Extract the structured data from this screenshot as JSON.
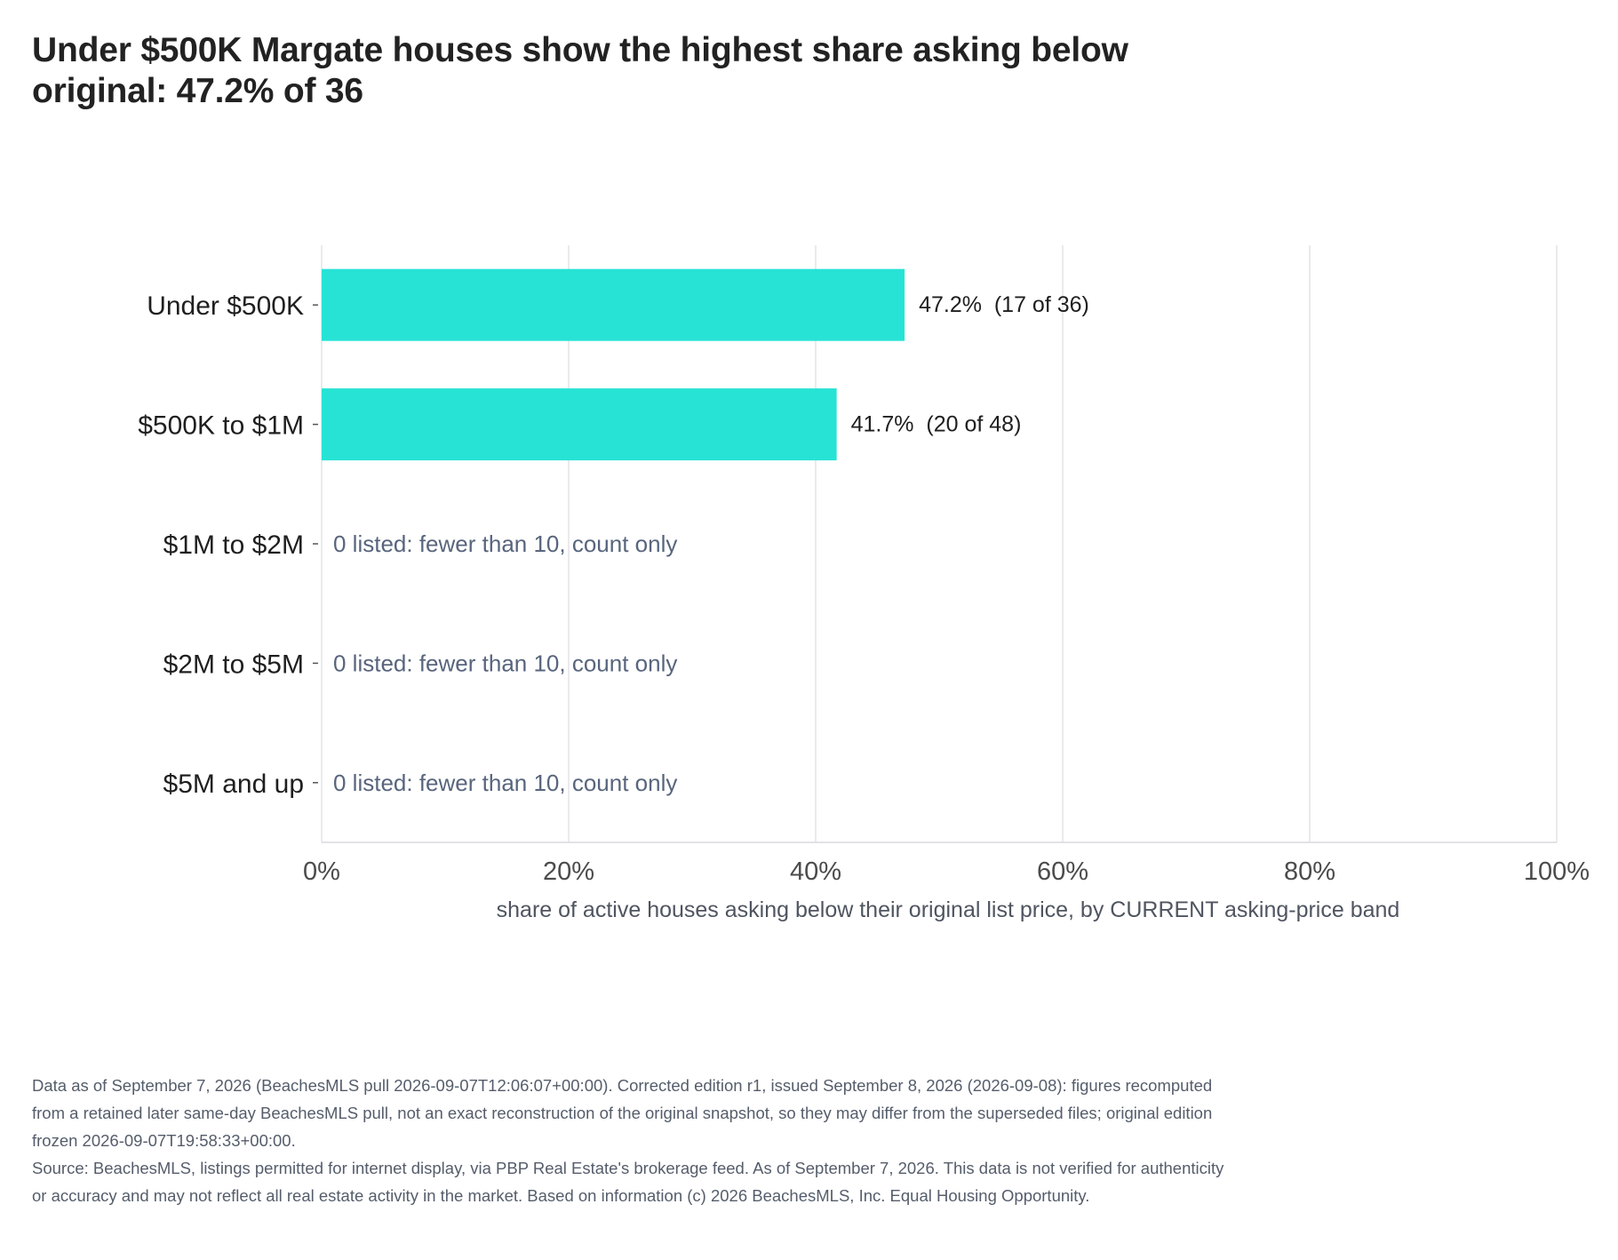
{
  "title": "Under $500K Margate houses show the highest share asking below original: 47.2% of 36",
  "footer": {
    "note": "Data as of September 7, 2026 (BeachesMLS pull 2026-09-07T12:06:07+00:00). Corrected edition r1, issued September 8, 2026 (2026-09-08): figures recomputed from a retained later same-day BeachesMLS pull, not an exact reconstruction of the original snapshot, so they may differ from the superseded files; original edition frozen 2026-09-07T19:58:33+00:00.",
    "source": "Source: BeachesMLS, listings permitted for internet display, via PBP Real Estate's brokerage feed. As of September 7, 2026. This data is not verified for authenticity or accuracy and may not reflect all real estate activity in the market. Based on information (c) 2026 BeachesMLS, Inc. Equal Housing Opportunity."
  },
  "chart_data": {
    "type": "bar",
    "orientation": "horizontal",
    "categories": [
      "Under $500K",
      "$500K to $1M",
      "$1M to $2M",
      "$2M to $5M",
      "$5M and up"
    ],
    "values": [
      47.2,
      41.7,
      null,
      null,
      null
    ],
    "data_labels": [
      "47.2%  (17 of 36)",
      "41.7%  (20 of 48)",
      "0 listed: fewer than 10, count only",
      "0 listed: fewer than 10, count only",
      "0 listed: fewer than 10, count only"
    ],
    "xlabel": "share of active houses asking below their original list price, by CURRENT asking-price band",
    "ylabel": "",
    "xlim": [
      0,
      100
    ],
    "xticks": [
      0,
      20,
      40,
      60,
      80,
      100
    ],
    "xtick_labels": [
      "0%",
      "20%",
      "40%",
      "60%",
      "80%",
      "100%"
    ],
    "grid": "vertical",
    "colors": {
      "bar": "#27e3d5",
      "grid": "#e3e3e8",
      "axis_line": "#d9d9de",
      "muted_label": "#58657d",
      "text": "#1f1f1f"
    }
  }
}
